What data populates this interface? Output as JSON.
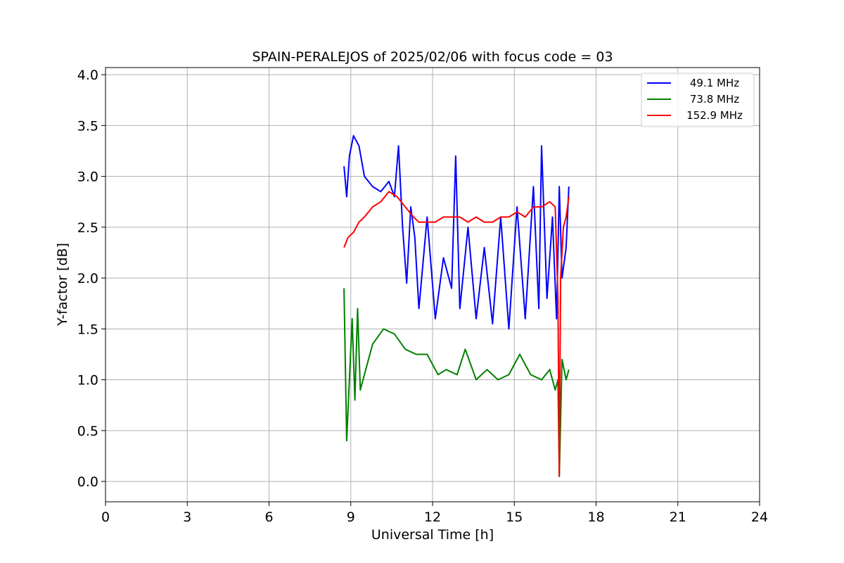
{
  "chart_data": {
    "type": "line",
    "title": "SPAIN-PERALEJOS of 2025/02/06 with focus code = 03",
    "xlabel": "Universal Time [h]",
    "ylabel": "Y-factor [dB]",
    "xlim": [
      0,
      24
    ],
    "ylim": [
      -0.2,
      4.07
    ],
    "xticks": [
      0,
      3,
      6,
      9,
      12,
      15,
      18,
      21,
      24
    ],
    "xtick_labels": [
      "0",
      "3",
      "6",
      "9",
      "12",
      "15",
      "18",
      "21",
      "24"
    ],
    "yticks": [
      0.0,
      0.5,
      1.0,
      1.5,
      2.0,
      2.5,
      3.0,
      3.5,
      4.0
    ],
    "ytick_labels": [
      "0.0",
      "0.5",
      "1.0",
      "1.5",
      "2.0",
      "2.5",
      "3.0",
      "3.5",
      "4.0"
    ],
    "grid": true,
    "legend_position": "top-right",
    "series": [
      {
        "name": "49.1 MHz",
        "color": "#0000ff",
        "x": [
          8.75,
          8.85,
          8.95,
          9.1,
          9.3,
          9.5,
          9.8,
          10.1,
          10.4,
          10.6,
          10.75,
          10.9,
          11.05,
          11.2,
          11.35,
          11.5,
          11.8,
          12.1,
          12.4,
          12.7,
          12.85,
          13.0,
          13.3,
          13.6,
          13.9,
          14.2,
          14.5,
          14.8,
          15.1,
          15.4,
          15.7,
          15.9,
          16.0,
          16.2,
          16.4,
          16.55,
          16.65,
          16.75,
          16.9,
          17.0
        ],
        "y": [
          3.1,
          2.8,
          3.2,
          3.4,
          3.3,
          3.0,
          2.9,
          2.85,
          2.95,
          2.8,
          3.3,
          2.5,
          1.95,
          2.7,
          2.4,
          1.7,
          2.6,
          1.6,
          2.2,
          1.9,
          3.2,
          1.7,
          2.5,
          1.6,
          2.3,
          1.55,
          2.6,
          1.5,
          2.7,
          1.6,
          2.9,
          1.7,
          3.3,
          1.8,
          2.6,
          1.6,
          2.9,
          2.0,
          2.3,
          2.9
        ]
      },
      {
        "name": "73.8 MHz",
        "color": "#008000",
        "x": [
          8.75,
          8.85,
          8.95,
          9.05,
          9.15,
          9.25,
          9.35,
          9.5,
          9.8,
          10.2,
          10.6,
          11.0,
          11.4,
          11.8,
          12.2,
          12.5,
          12.9,
          13.2,
          13.6,
          14.0,
          14.4,
          14.8,
          15.2,
          15.6,
          16.0,
          16.3,
          16.5,
          16.6,
          16.65,
          16.75,
          16.9,
          17.0
        ],
        "y": [
          1.9,
          0.4,
          1.0,
          1.6,
          0.8,
          1.7,
          0.9,
          1.05,
          1.35,
          1.5,
          1.45,
          1.3,
          1.25,
          1.25,
          1.05,
          1.1,
          1.05,
          1.3,
          1.0,
          1.1,
          1.0,
          1.05,
          1.25,
          1.05,
          1.0,
          1.1,
          0.9,
          1.0,
          0.05,
          1.2,
          1.0,
          1.1
        ]
      },
      {
        "name": "152.9 MHz",
        "color": "#ff0000",
        "x": [
          8.75,
          8.9,
          9.1,
          9.3,
          9.5,
          9.8,
          10.1,
          10.4,
          10.7,
          11.0,
          11.3,
          11.5,
          11.8,
          12.1,
          12.4,
          12.7,
          13.0,
          13.3,
          13.6,
          13.9,
          14.2,
          14.5,
          14.8,
          15.1,
          15.4,
          15.7,
          16.0,
          16.3,
          16.5,
          16.6,
          16.65,
          16.7,
          16.8,
          16.9,
          17.0
        ],
        "y": [
          2.3,
          2.4,
          2.45,
          2.55,
          2.6,
          2.7,
          2.75,
          2.85,
          2.8,
          2.7,
          2.6,
          2.55,
          2.55,
          2.55,
          2.6,
          2.6,
          2.6,
          2.55,
          2.6,
          2.55,
          2.55,
          2.6,
          2.6,
          2.65,
          2.6,
          2.7,
          2.7,
          2.75,
          2.7,
          1.8,
          0.05,
          2.0,
          2.5,
          2.6,
          2.8
        ]
      }
    ]
  }
}
